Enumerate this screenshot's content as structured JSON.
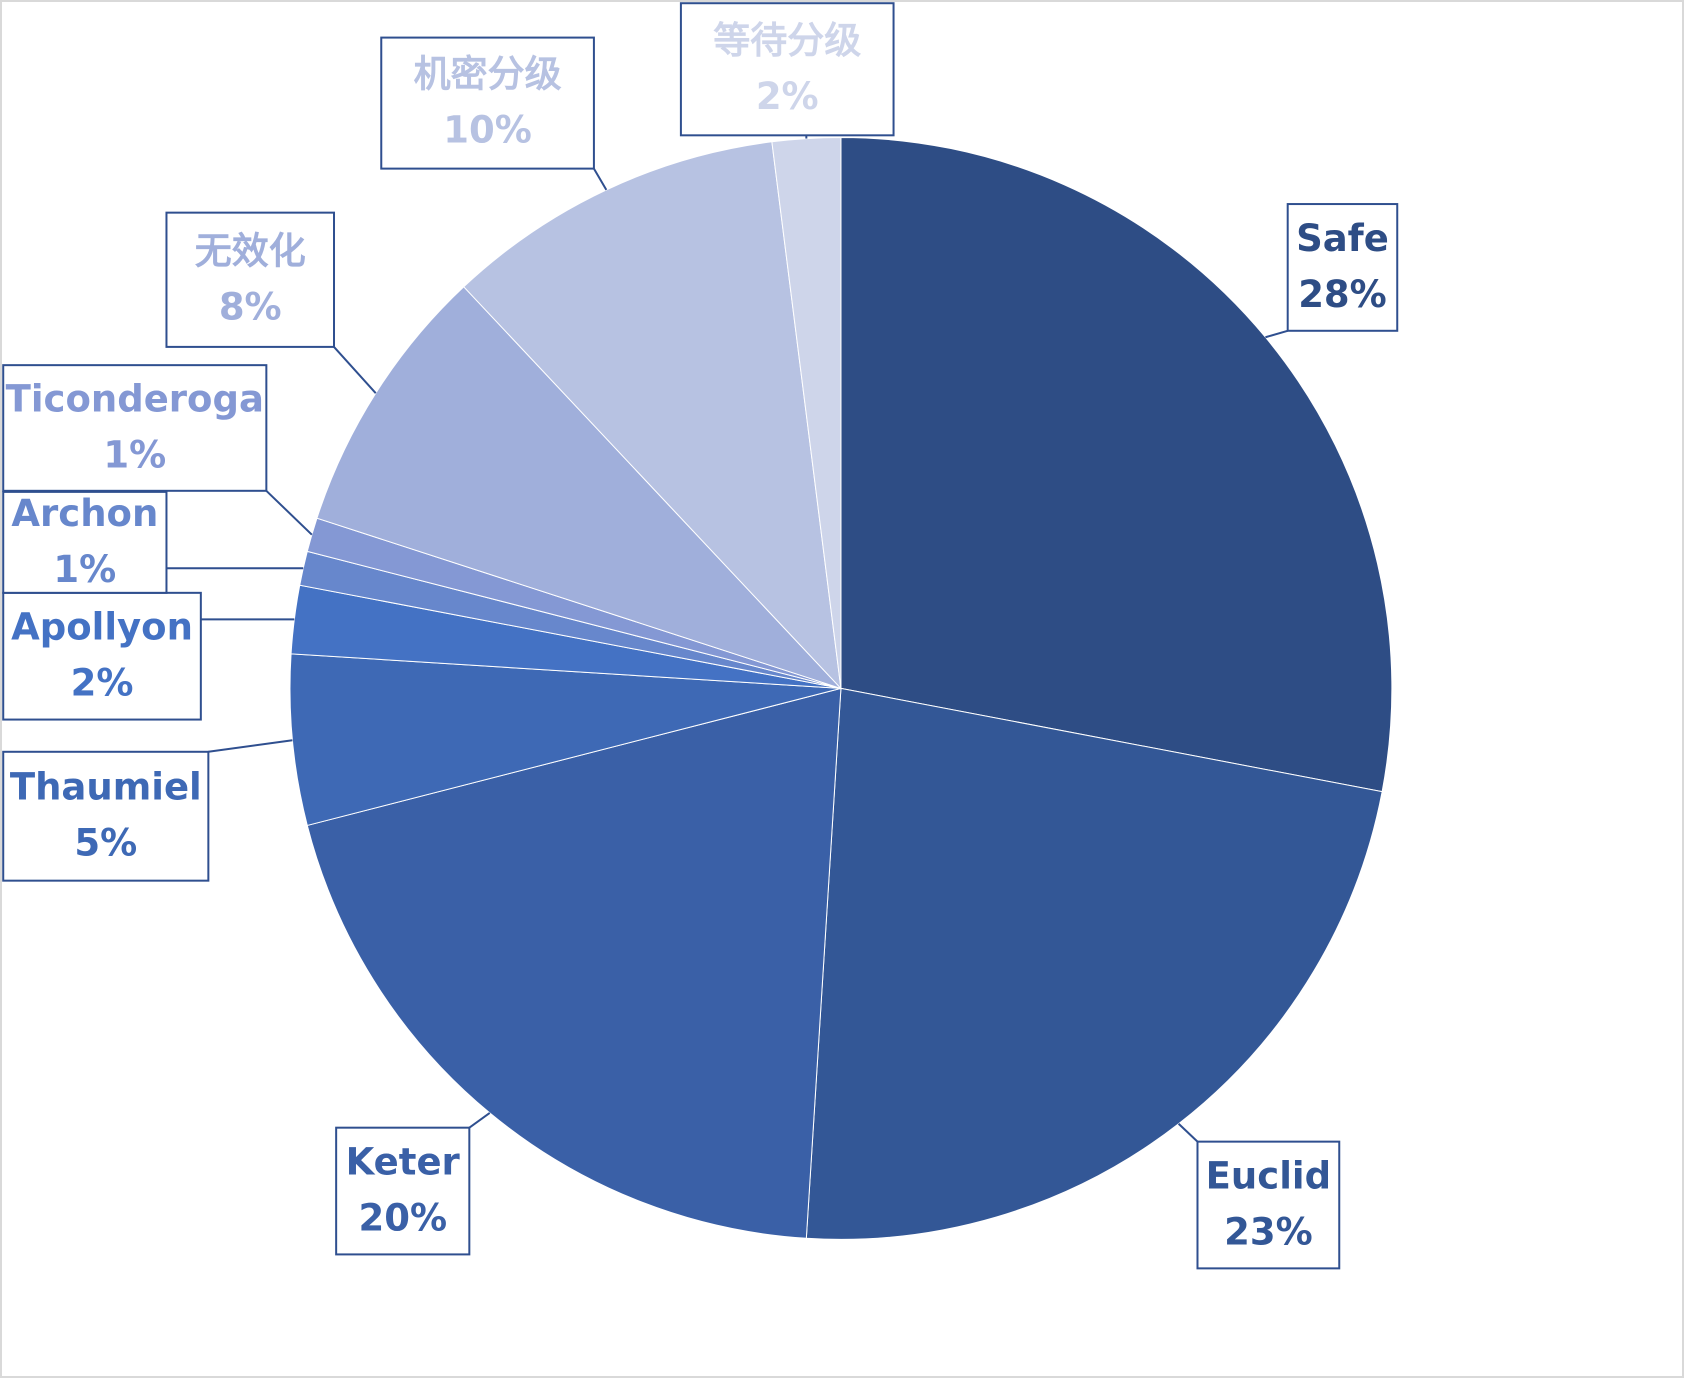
{
  "chart_data": {
    "type": "pie",
    "categories": [
      "Safe",
      "Euclid",
      "Keter",
      "Thaumiel",
      "Apollyon",
      "Archon",
      "Ticonderoga",
      "无效化",
      "机密分级",
      "等待分级"
    ],
    "values": [
      28,
      23,
      20,
      5,
      2,
      1,
      1,
      8,
      10,
      2
    ],
    "value_labels": [
      "28%",
      "23%",
      "20%",
      "5%",
      "2%",
      "1%",
      "1%",
      "8%",
      "10%",
      "2%"
    ],
    "colors": [
      "#2e4d85",
      "#335796",
      "#3a60a7",
      "#3e69b5",
      "#4472c4",
      "#6787cc",
      "#8498d4",
      "#a0afdb",
      "#b7c2e2",
      "#ced5ea"
    ]
  }
}
